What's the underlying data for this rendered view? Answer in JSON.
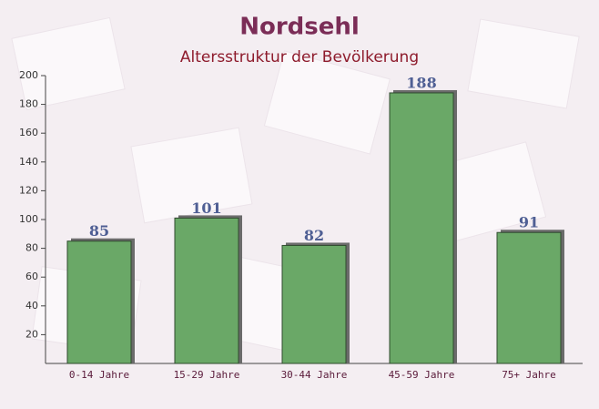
{
  "chart_data": {
    "type": "bar",
    "title": "Nordsehl",
    "subtitle": "Altersstruktur der Bevölkerung",
    "categories": [
      "0-14 Jahre",
      "15-29 Jahre",
      "30-44 Jahre",
      "45-59 Jahre",
      "75+ Jahre"
    ],
    "values": [
      85,
      101,
      82,
      188,
      91
    ],
    "color": "#6aa867",
    "ylim": [
      0,
      200
    ],
    "yticks": [
      20,
      40,
      60,
      80,
      100,
      120,
      140,
      160,
      180,
      200
    ]
  }
}
